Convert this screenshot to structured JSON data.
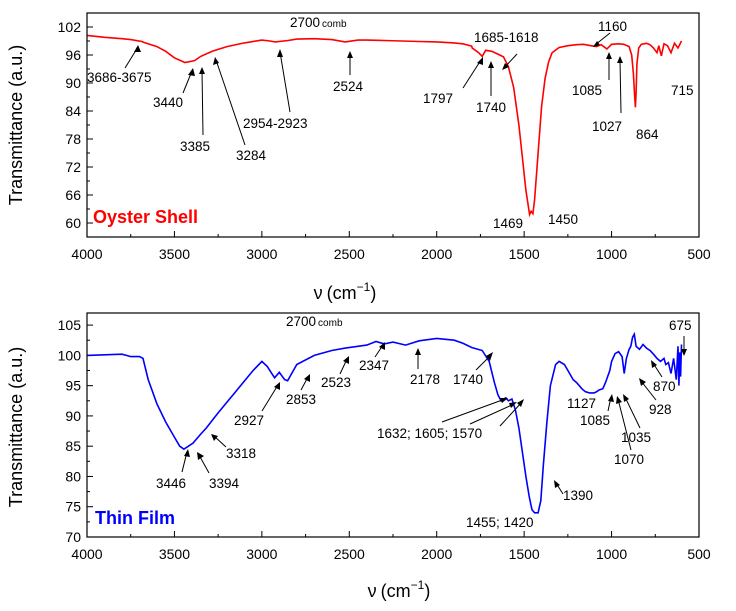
{
  "chart_data": [
    {
      "type": "line",
      "panel_label": "Oyster Shell",
      "color": "#ff0000",
      "xlabel_symbol": "ν",
      "xlabel_unit_base": "(cm",
      "xlabel_unit_exp": "−1",
      "xlabel_unit_close": ")",
      "ylabel": "Transmittance (a.u.)",
      "xlim": [
        4000,
        500
      ],
      "ylim": [
        57,
        105
      ],
      "xticks": [
        4000,
        3500,
        3000,
        2500,
        2000,
        1500,
        1000,
        500
      ],
      "yticks": [
        60,
        66,
        72,
        78,
        84,
        90,
        96,
        102
      ],
      "series": [
        {
          "name": "Oyster Shell",
          "x": [
            4000,
            3900,
            3800,
            3750,
            3686,
            3675,
            3600,
            3550,
            3500,
            3440,
            3385,
            3350,
            3284,
            3200,
            3100,
            3000,
            2954,
            2923,
            2850,
            2800,
            2700,
            2600,
            2524,
            2450,
            2400,
            2300,
            2200,
            2100,
            2000,
            1900,
            1850,
            1800,
            1797,
            1760,
            1740,
            1720,
            1685,
            1650,
            1618,
            1590,
            1560,
            1530,
            1510,
            1490,
            1469,
            1460,
            1450,
            1440,
            1420,
            1400,
            1380,
            1360,
            1340,
            1300,
            1250,
            1200,
            1160,
            1120,
            1085,
            1060,
            1027,
            1000,
            960,
            930,
            900,
            885,
            875,
            868,
            864,
            860,
            855,
            845,
            830,
            800,
            780,
            760,
            740,
            730,
            720,
            715,
            710,
            700,
            680,
            660,
            640,
            620,
            600
          ],
          "y": [
            100.2,
            99.8,
            99.5,
            99.3,
            98.9,
            98.7,
            97.8,
            96.8,
            95.4,
            94.4,
            94.8,
            95.7,
            96.8,
            97.8,
            98.6,
            99.2,
            99.0,
            98.8,
            99.1,
            99.4,
            99.5,
            99.3,
            98.8,
            99.2,
            99.2,
            99.1,
            99.0,
            98.9,
            98.8,
            98.6,
            98.4,
            97.9,
            97.5,
            96.5,
            95.7,
            97.0,
            96.8,
            96.2,
            95.6,
            93.5,
            89.0,
            81.0,
            74.0,
            67.0,
            61.8,
            62.5,
            62.0,
            65.0,
            75.0,
            85.0,
            91.0,
            94.5,
            96.5,
            97.6,
            98.0,
            98.2,
            98.3,
            98.0,
            97.8,
            98.2,
            97.3,
            98.3,
            98.4,
            98.3,
            97.8,
            96.0,
            92.0,
            87.0,
            84.8,
            88.0,
            94.0,
            97.5,
            98.3,
            98.5,
            98.2,
            97.5,
            96.5,
            98.0,
            96.5,
            95.8,
            96.8,
            98.4,
            98.0,
            96.5,
            98.5,
            97.5,
            99.0
          ]
        }
      ],
      "comb_label": {
        "main": "2700",
        "sub": "comb"
      },
      "annotations": [
        "3686-3675",
        "3440",
        "3385",
        "3284",
        "2954-2923",
        "2524",
        "1797",
        "1740",
        "1685-1618",
        "1469",
        "1450",
        "1160",
        "1085",
        "1027",
        "864",
        "715"
      ]
    },
    {
      "type": "line",
      "panel_label": "Thin Film",
      "color": "#0000ff",
      "xlabel_symbol": "ν",
      "xlabel_unit_base": "(cm",
      "xlabel_unit_exp": "−1",
      "xlabel_unit_close": ")",
      "ylabel": "Transmittance (a.u.)",
      "xlim": [
        4000,
        500
      ],
      "ylim": [
        70,
        107
      ],
      "xticks": [
        4000,
        3500,
        3000,
        2500,
        2000,
        1500,
        1000,
        500
      ],
      "yticks": [
        70,
        75,
        80,
        85,
        90,
        95,
        100,
        105
      ],
      "series": [
        {
          "name": "Thin Film",
          "x": [
            4000,
            3900,
            3800,
            3750,
            3700,
            3680,
            3650,
            3600,
            3550,
            3500,
            3470,
            3446,
            3420,
            3394,
            3350,
            3318,
            3250,
            3150,
            3050,
            3000,
            2970,
            2927,
            2900,
            2870,
            2853,
            2800,
            2700,
            2600,
            2523,
            2450,
            2400,
            2347,
            2300,
            2250,
            2178,
            2100,
            2000,
            1900,
            1850,
            1800,
            1740,
            1700,
            1670,
            1650,
            1632,
            1605,
            1590,
            1570,
            1550,
            1530,
            1510,
            1490,
            1470,
            1455,
            1440,
            1420,
            1405,
            1390,
            1370,
            1350,
            1320,
            1300,
            1270,
            1250,
            1220,
            1200,
            1170,
            1150,
            1127,
            1100,
            1085,
            1070,
            1050,
            1035,
            1010,
            1000,
            980,
            960,
            940,
            928,
            915,
            900,
            890,
            880,
            870,
            860,
            840,
            820,
            800,
            780,
            760,
            740,
            720,
            700,
            690,
            675,
            660,
            645,
            630,
            620,
            615,
            610,
            605,
            600
          ],
          "y": [
            100.0,
            100.1,
            100.2,
            99.8,
            99.8,
            99.5,
            96.0,
            92.0,
            89.0,
            86.5,
            85.0,
            84.5,
            85.0,
            85.5,
            87.0,
            88.0,
            90.5,
            94.0,
            97.5,
            99.0,
            98.2,
            96.3,
            97.2,
            96.0,
            95.8,
            98.5,
            100.0,
            100.8,
            101.2,
            101.5,
            101.7,
            102.3,
            101.9,
            102.2,
            101.7,
            102.4,
            102.8,
            102.5,
            102.0,
            101.3,
            100.8,
            99.0,
            95.5,
            93.5,
            92.5,
            93.0,
            92.5,
            92.8,
            91.0,
            88.0,
            84.0,
            80.0,
            76.5,
            74.5,
            74.0,
            74.0,
            76.0,
            82.0,
            89.0,
            95.0,
            98.5,
            99.0,
            98.5,
            97.5,
            96.0,
            95.5,
            94.5,
            94.0,
            93.8,
            93.8,
            94.0,
            94.3,
            94.5,
            95.5,
            97.5,
            99.0,
            100.3,
            100.6,
            99.8,
            97.0,
            99.5,
            101.0,
            101.5,
            103.0,
            103.5,
            101.5,
            101.0,
            101.8,
            101.2,
            100.8,
            100.2,
            99.5,
            99.0,
            99.5,
            98.5,
            98.8,
            97.0,
            99.5,
            96.0,
            101.5,
            95.0,
            100.5,
            96.5,
            101.8
          ]
        }
      ],
      "comb_label": {
        "main": "2700",
        "sub": "comb"
      },
      "annotations": [
        "3446",
        "3394",
        "3318",
        "2927",
        "2853",
        "2523",
        "2347",
        "2178",
        "1740",
        "1632; 1605; 1570",
        "1455; 1420",
        "1390",
        "1127",
        "1085",
        "1070",
        "1035",
        "928",
        "870",
        "675"
      ]
    }
  ]
}
